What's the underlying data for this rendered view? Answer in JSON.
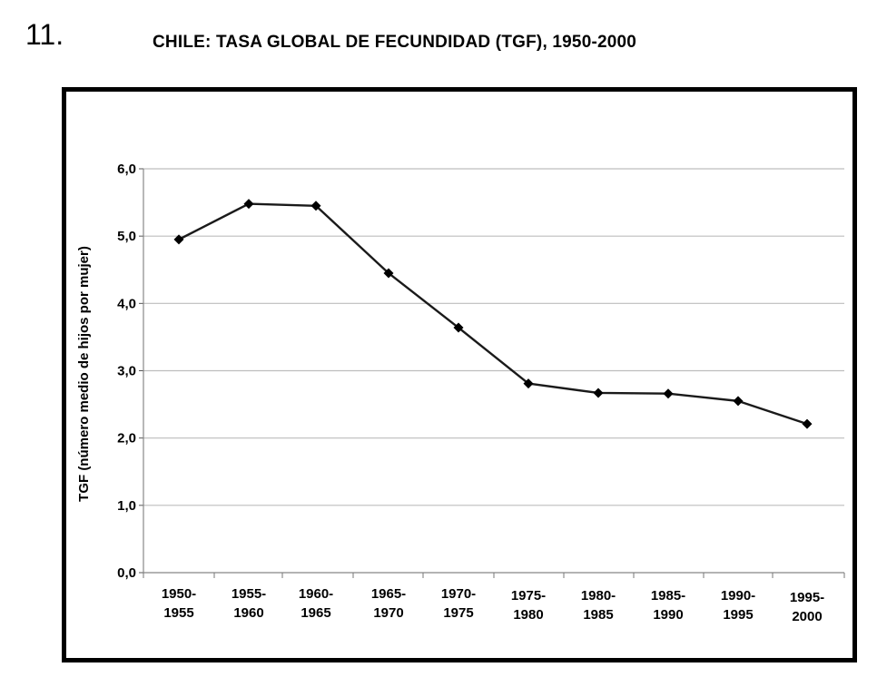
{
  "question_number": "11.",
  "chart_data": {
    "type": "line",
    "title": "CHILE: TASA GLOBAL DE FECUNDIDAD (TGF), 1950-2000",
    "xlabel": "",
    "ylabel": "TGF (número medio de hijos por mujer)",
    "categories": [
      [
        "1950-",
        "1955"
      ],
      [
        "1955-",
        "1960"
      ],
      [
        "1960-",
        "1965"
      ],
      [
        "1965-",
        "1970"
      ],
      [
        "1970-",
        "1975"
      ],
      [
        "1975-",
        "1980"
      ],
      [
        "1980-",
        "1985"
      ],
      [
        "1985-",
        "1990"
      ],
      [
        "1990-",
        "1995"
      ],
      [
        "1995-",
        "2000"
      ]
    ],
    "series": [
      {
        "values": [
          4.95,
          5.48,
          5.45,
          4.45,
          3.64,
          2.81,
          2.67,
          2.66,
          2.55,
          2.21
        ]
      }
    ],
    "ylim": [
      0,
      6
    ],
    "yticks": [
      "0,0",
      "1,0",
      "2,0",
      "3,0",
      "4,0",
      "5,0",
      "6,0"
    ],
    "grid": true,
    "legend": "none",
    "line_color": "#1a1a1a",
    "grid_color": "#bdbdbd"
  }
}
